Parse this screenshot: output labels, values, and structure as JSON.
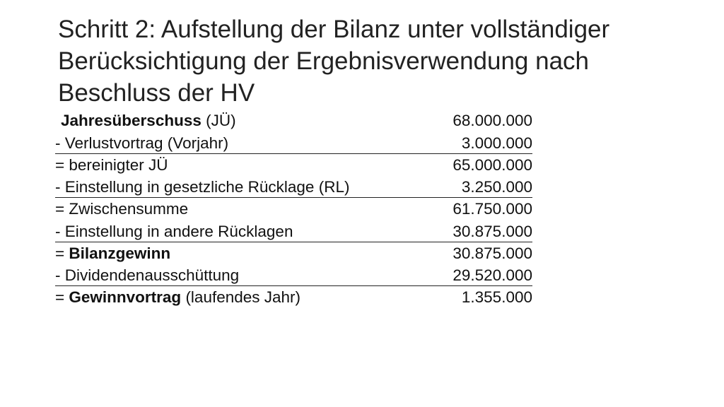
{
  "title": {
    "line1": "Schritt 2: Aufstellung der Bilanz unter vollständiger",
    "line2": "Berücksichtigung der Ergebnisverwendung nach",
    "line3": "Beschluss der HV"
  },
  "rows": [
    {
      "prefix": "",
      "bold": "Jahresüberschuss",
      "rest": " (JÜ)",
      "amount": "68.000.000"
    },
    {
      "prefix": "- Verlustvortrag (Vorjahr)",
      "bold": "",
      "rest": "",
      "amount": "3.000.000"
    },
    {
      "prefix": "= bereinigter JÜ",
      "bold": "",
      "rest": "",
      "amount": "65.000.000"
    },
    {
      "prefix": "- Einstellung in gesetzliche Rücklage (RL)",
      "bold": "",
      "rest": "",
      "amount": "3.250.000"
    },
    {
      "prefix": "= Zwischensumme",
      "bold": "",
      "rest": "",
      "amount": "61.750.000"
    },
    {
      "prefix": "- Einstellung in andere Rücklagen",
      "bold": "",
      "rest": "",
      "amount": "30.875.000"
    },
    {
      "prefix": "= ",
      "bold": "Bilanzgewinn",
      "rest": "",
      "amount": "30.875.000"
    },
    {
      "prefix": "- Dividendenausschüttung",
      "bold": "",
      "rest": "",
      "amount": "29.520.000"
    },
    {
      "prefix": "= ",
      "bold": "Gewinnvortrag",
      "rest": " (laufendes Jahr)",
      "amount": "1.355.000"
    }
  ]
}
